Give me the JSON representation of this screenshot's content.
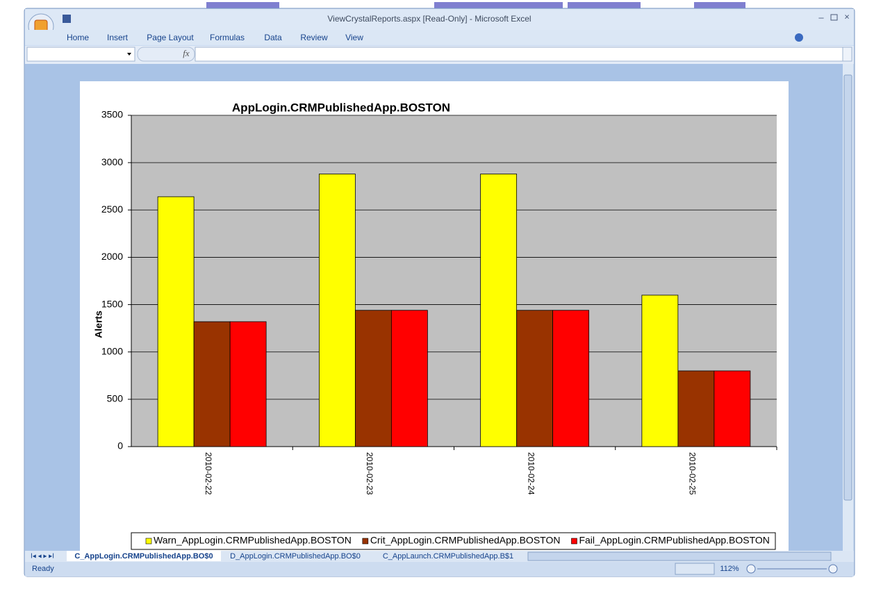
{
  "window": {
    "title": "ViewCrystalReports.aspx  [Read-Only] - Microsoft Excel",
    "ribbon_tabs": [
      "Home",
      "Insert",
      "Page Layout",
      "Formulas",
      "Data",
      "Review",
      "View"
    ],
    "fx": "fx",
    "sheet_tabs": [
      "C_AppLogin.CRMPublishedApp.BO$0",
      "D_AppLogin.CRMPublishedApp.BO$0",
      "C_AppLaunch.CRMPublishedApp.B$1"
    ],
    "status": "Ready",
    "zoom": "112%"
  },
  "chart_data": {
    "type": "bar",
    "title": "AppLogin.CRMPublishedApp.BOSTON",
    "y_label": "Alerts",
    "categories": [
      "2010-02-22",
      "2010-02-23",
      "2010-02-24",
      "2010-02-25"
    ],
    "series": [
      {
        "name": "Warn_AppLogin.CRMPublishedApp.BOSTON",
        "color": "#ffff00",
        "values": [
          2640,
          2880,
          2880,
          1600
        ]
      },
      {
        "name": "Crit_AppLogin.CRMPublishedApp.BOSTON",
        "color": "#993300",
        "values": [
          1320,
          1440,
          1440,
          800
        ]
      },
      {
        "name": "Fail_AppLogin.CRMPublishedApp.BOSTON",
        "color": "#ff0000",
        "values": [
          1320,
          1440,
          1440,
          800
        ]
      }
    ],
    "ylim": [
      0,
      3500
    ],
    "yticks": [
      0,
      500,
      1000,
      1500,
      2000,
      2500,
      3000,
      3500
    ],
    "grid": true,
    "legend": "bottom"
  }
}
